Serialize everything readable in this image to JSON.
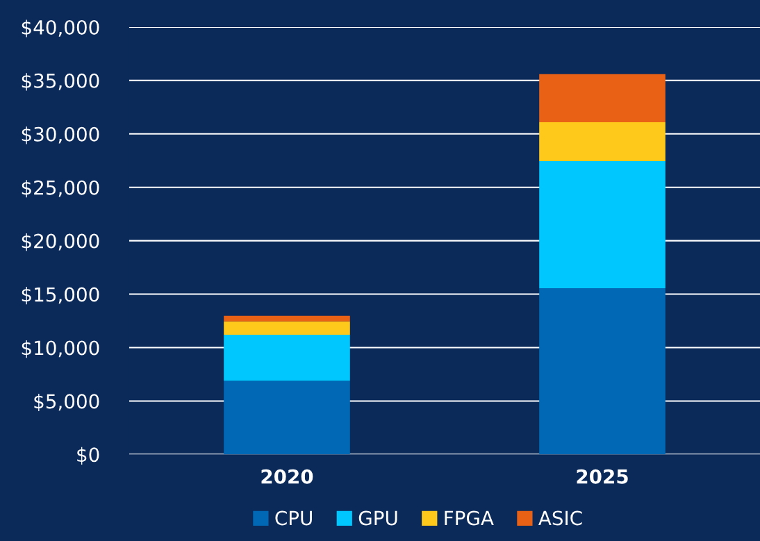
{
  "chart_data": {
    "type": "bar",
    "stacked": true,
    "categories": [
      "2020",
      "2025"
    ],
    "series": [
      {
        "name": "CPU",
        "color": "#0068b5",
        "values": [
          6900,
          15550
        ]
      },
      {
        "name": "GPU",
        "color": "#00c7fd",
        "values": [
          4300,
          11900
        ]
      },
      {
        "name": "FPGA",
        "color": "#fec91b",
        "values": [
          1250,
          3650
        ]
      },
      {
        "name": "ASIC",
        "color": "#e96115",
        "values": [
          530,
          4500
        ]
      }
    ],
    "ylim": [
      0,
      40000
    ],
    "yticks": [
      {
        "value": 0,
        "label": "$0"
      },
      {
        "value": 5000,
        "label": "$5,000"
      },
      {
        "value": 10000,
        "label": "$10,000"
      },
      {
        "value": 15000,
        "label": "$15,000"
      },
      {
        "value": 20000,
        "label": "$20,000"
      },
      {
        "value": 25000,
        "label": "$25,000"
      },
      {
        "value": 30000,
        "label": "$30,000"
      },
      {
        "value": 35000,
        "label": "$35,000"
      },
      {
        "value": 40000,
        "label": "$40,000"
      }
    ],
    "grid": "y",
    "legend": "bottom"
  }
}
